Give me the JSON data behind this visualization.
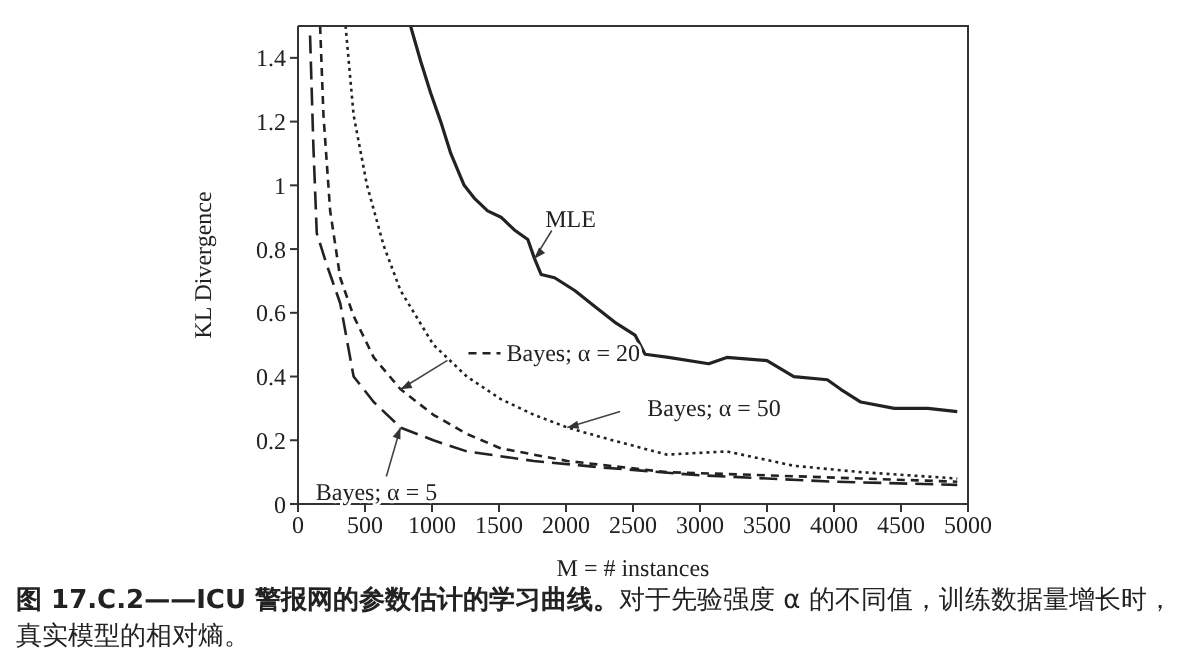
{
  "chart_data": {
    "type": "line",
    "xlabel": "M = # instances",
    "ylabel": "KL Divergence",
    "xlim": [
      0,
      5000
    ],
    "xticks": [
      0,
      500,
      1000,
      1500,
      2000,
      2500,
      3000,
      3500,
      4000,
      4500,
      5000
    ],
    "ylim": [
      0,
      1.5
    ],
    "yticks": [
      0,
      0.2,
      0.4,
      0.6,
      0.8,
      1,
      1.2,
      1.4
    ],
    "marker": "none",
    "series": [
      {
        "name": "MLE",
        "color": "#222222",
        "line_style": "solid",
        "x": [
          840,
          915,
          990,
          1065,
          1140,
          1240,
          1315,
          1415,
          1515,
          1615,
          1715,
          1765,
          1815,
          1915,
          2065,
          2215,
          2365,
          2515,
          2590,
          2765,
          3065,
          3200,
          3500,
          3700,
          3950,
          4050,
          4200,
          4450,
          4700,
          4920
        ],
        "values": [
          1.5,
          1.39,
          1.29,
          1.2,
          1.1,
          1.0,
          0.96,
          0.92,
          0.9,
          0.86,
          0.83,
          0.77,
          0.72,
          0.71,
          0.67,
          0.62,
          0.57,
          0.53,
          0.47,
          0.46,
          0.44,
          0.46,
          0.45,
          0.4,
          0.39,
          0.36,
          0.32,
          0.3,
          0.3,
          0.29
        ]
      },
      {
        "name": "Bayes; α = 20",
        "color": "#222222",
        "line_style": "dashed",
        "x": [
          165,
          190,
          240,
          315,
          415,
          565,
          765,
          1010,
          1260,
          1510,
          2010,
          2750,
          3500,
          4200,
          4920
        ],
        "values": [
          1.5,
          1.22,
          0.92,
          0.71,
          0.59,
          0.46,
          0.36,
          0.28,
          0.22,
          0.175,
          0.135,
          0.1,
          0.09,
          0.08,
          0.07
        ]
      },
      {
        "name": "Bayes; α = 50",
        "color": "#222222",
        "line_style": "dotted",
        "x": [
          355,
          415,
          515,
          640,
          765,
          1010,
          1260,
          1510,
          1760,
          2010,
          2260,
          2750,
          3200,
          3700,
          4200,
          4920
        ],
        "values": [
          1.5,
          1.22,
          1.0,
          0.81,
          0.67,
          0.5,
          0.4,
          0.33,
          0.28,
          0.24,
          0.21,
          0.155,
          0.165,
          0.12,
          0.1,
          0.08
        ]
      },
      {
        "name": "Bayes; α = 5",
        "color": "#222222",
        "line_style": "dashed",
        "x": [
          90,
          115,
          140,
          215,
          315,
          415,
          565,
          765,
          1010,
          1260,
          1760,
          2260,
          3000,
          4000,
          4920
        ],
        "values": [
          1.47,
          1.12,
          0.85,
          0.75,
          0.63,
          0.4,
          0.32,
          0.24,
          0.2,
          0.165,
          0.135,
          0.115,
          0.09,
          0.07,
          0.06
        ]
      }
    ],
    "annotations": [
      "图 17.C.2——ICU 警报网的参数估计的学习曲线。",
      "对于先验强度 α 的不同值，训练数据量增长时，真实模型的相对熵。"
    ]
  }
}
